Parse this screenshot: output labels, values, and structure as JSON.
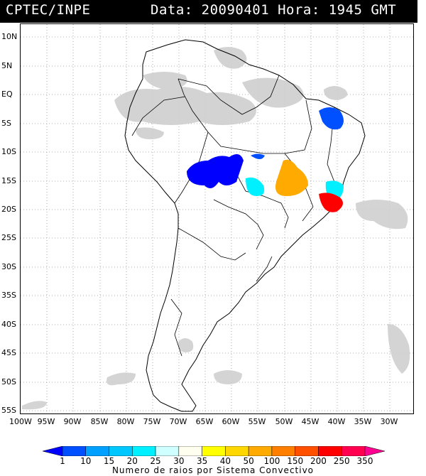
{
  "header": {
    "source": "CPTEC/INPE",
    "datetime": "Data: 20090401 Hora: 1945 GMT"
  },
  "lat_labels": [
    "10N",
    "5N",
    "EQ",
    "5S",
    "10S",
    "15S",
    "20S",
    "25S",
    "30S",
    "35S",
    "40S",
    "45S",
    "50S",
    "55S"
  ],
  "lon_labels": [
    "100W",
    "95W",
    "90W",
    "85W",
    "80W",
    "75W",
    "70W",
    "65W",
    "60W",
    "55W",
    "50W",
    "45W",
    "40W",
    "35W",
    "30W"
  ],
  "legend": {
    "title": "Numero de raios por Sistema Convectivo",
    "ticks": [
      "1",
      "10",
      "15",
      "20",
      "25",
      "30",
      "35",
      "40",
      "50",
      "100",
      "150",
      "200",
      "250",
      "350"
    ],
    "colors": [
      "#0000ff",
      "#0050ff",
      "#00a0ff",
      "#00c8ff",
      "#00f0ff",
      "#d0ffff",
      "#fffff0",
      "#ffff00",
      "#ffd700",
      "#ffaa00",
      "#ff8000",
      "#ff5000",
      "#ff0000",
      "#ff0050",
      "#ff0090"
    ]
  },
  "map": {
    "background": "#ffffff",
    "cloud_color": "#c8c8c8",
    "land_border_color": "#000000"
  }
}
